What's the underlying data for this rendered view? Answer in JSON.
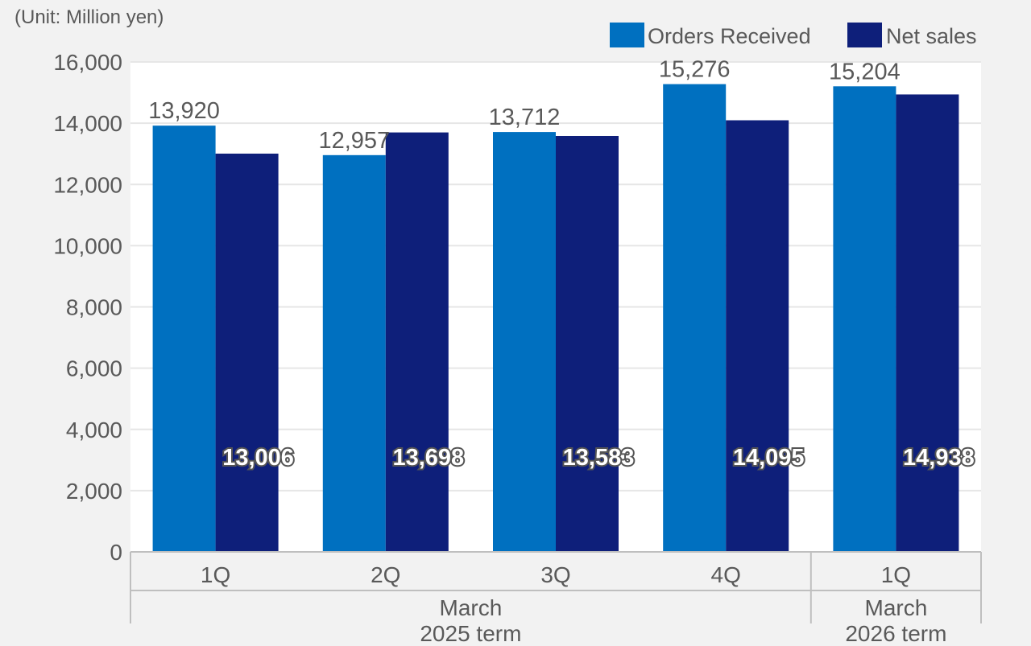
{
  "chart_data": {
    "type": "bar",
    "unit_label": "(Unit: Million yen)",
    "categories": [
      "1Q",
      "2Q",
      "3Q",
      "4Q",
      "1Q"
    ],
    "groups": [
      {
        "label_line1": "March",
        "label_line2": "2025 term",
        "count": 4
      },
      {
        "label_line1": "March",
        "label_line2": "2026 term",
        "count": 1
      }
    ],
    "series": [
      {
        "name": "Orders Received",
        "color": "#0070c0",
        "values": [
          13920,
          12957,
          13712,
          15276,
          15204
        ],
        "labels": [
          "13,920",
          "12,957",
          "13,712",
          "15,276",
          "15,204"
        ]
      },
      {
        "name": "Net sales",
        "color": "#0e1f7a",
        "values": [
          13006,
          13698,
          13583,
          14095,
          14938
        ],
        "labels": [
          "13,006",
          "13,698",
          "13,583",
          "14,095",
          "14,938"
        ]
      }
    ],
    "ylim": [
      0,
      16000
    ],
    "yticks": [
      0,
      2000,
      4000,
      6000,
      8000,
      10000,
      12000,
      14000,
      16000
    ],
    "ytick_labels": [
      "0",
      "2,000",
      "4,000",
      "6,000",
      "8,000",
      "10,000",
      "12,000",
      "14,000",
      "16,000"
    ],
    "grid": true,
    "legend_position": "top-right"
  }
}
